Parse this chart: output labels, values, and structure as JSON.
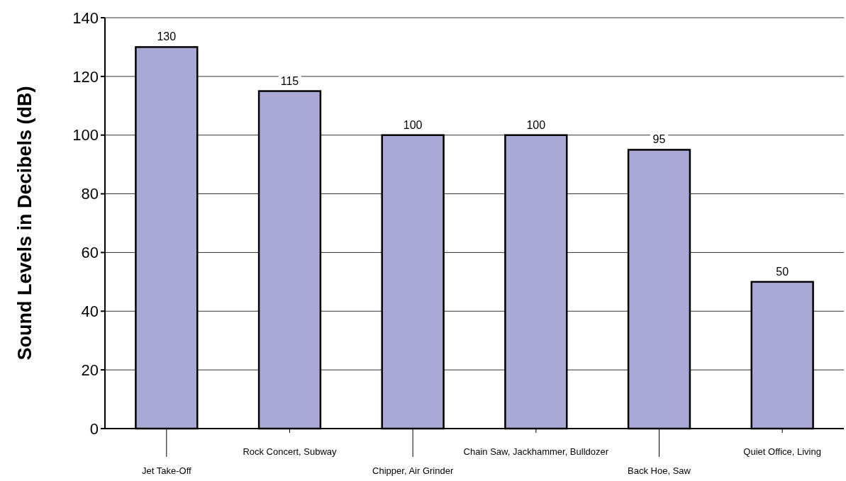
{
  "chart_data": {
    "type": "bar",
    "ylabel": "Sound Levels in Decibels (dB)",
    "categories": [
      "Jet Take-Off",
      "Rock Concert, Subway",
      "Chipper, Air Grinder",
      "Chain Saw, Jackhammer, Bulldozer",
      "Back Hoe, Saw",
      "Quiet Office, Living"
    ],
    "values": [
      130,
      115,
      100,
      100,
      95,
      50
    ],
    "color": "#aaa8d4",
    "ylim": [
      0,
      140
    ],
    "yticks": [
      0,
      20,
      40,
      60,
      80,
      100,
      120,
      140
    ],
    "grid": "y",
    "data_labels": true
  }
}
